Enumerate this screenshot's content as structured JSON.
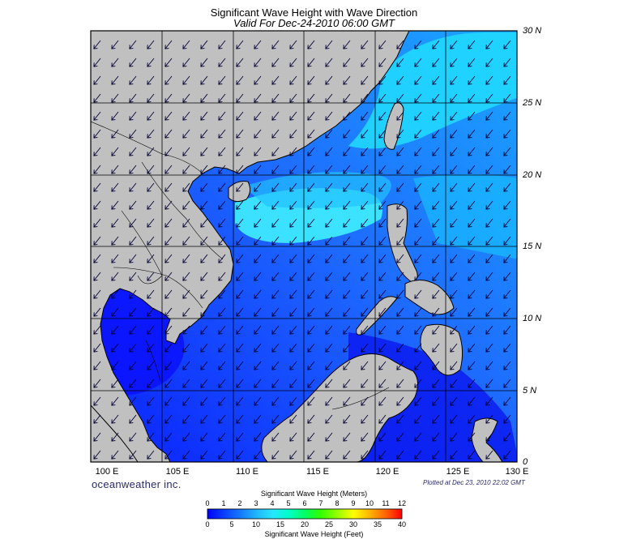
{
  "title": "Significant Wave Height with Wave Direction",
  "subtitle": "Valid For Dec-24-2010 06:00 GMT",
  "logo_text": "oceanweather inc.",
  "plotted_text": "Plotted at Dec 23, 2010 22:02 GMT",
  "map": {
    "lon_range": [
      100,
      130
    ],
    "lat_range": [
      0,
      30
    ],
    "grid": true,
    "lat_labels": [
      "30 N",
      "25 N",
      "20 N",
      "15 N",
      "10 N",
      "5 N",
      "0"
    ],
    "lon_labels": [
      "100 E",
      "105 E",
      "110 E",
      "115 E",
      "120 E",
      "125 E",
      "130 E"
    ],
    "wave_direction": "from northeast",
    "colors": {
      "land": "#c0c0c0",
      "coast": "#000000",
      "arrow": "#000033",
      "grid": "#000000"
    }
  },
  "legend": {
    "title_meters": "Significant Wave Height (Meters)",
    "title_feet": "Significant Wave Height (Feet)",
    "meters_ticks": [
      "0",
      "1",
      "2",
      "3",
      "4",
      "5",
      "6",
      "7",
      "8",
      "9",
      "10",
      "11",
      "12"
    ],
    "feet_ticks": [
      "0",
      "5",
      "10",
      "15",
      "20",
      "25",
      "30",
      "35",
      "40"
    ],
    "colors": [
      "#0000ff",
      "#0a3cff",
      "#1478ff",
      "#1eb4ff",
      "#28e6ff",
      "#00ffc8",
      "#00ff64",
      "#32ff00",
      "#96ff00",
      "#ffff00",
      "#ffb400",
      "#ff6400",
      "#ff0000"
    ]
  }
}
